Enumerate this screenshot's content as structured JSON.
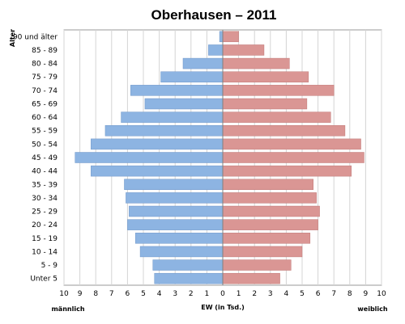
{
  "chart_data": {
    "type": "bar",
    "orientation": "horizontal",
    "layout": "population-pyramid",
    "title": "Oberhausen – 2011",
    "ylabel": "Alter",
    "xlabel": "EW (in Tsd.)",
    "left_label": "männlich",
    "right_label": "weiblich",
    "xlim": [
      -10,
      10
    ],
    "x_ticks": [
      "10",
      "9",
      "8",
      "7",
      "6",
      "5",
      "4",
      "3",
      "2",
      "1",
      "0",
      "1",
      "2",
      "3",
      "4",
      "5",
      "6",
      "7",
      "8",
      "9",
      "10"
    ],
    "categories": [
      "90 und älter",
      "85 - 89",
      "80 - 84",
      "75 - 79",
      "70 - 74",
      "65 - 69",
      "60 - 64",
      "55 - 59",
      "50 - 54",
      "45 - 49",
      "40 - 44",
      "35 - 39",
      "30 - 34",
      "25 - 29",
      "20 - 24",
      "15 - 19",
      "10 - 14",
      "5 - 9",
      "Unter 5"
    ],
    "series": [
      {
        "name": "männlich",
        "color": "#8db4e2",
        "values": [
          0.2,
          0.9,
          2.5,
          3.9,
          5.8,
          4.9,
          6.4,
          7.4,
          8.3,
          9.3,
          8.3,
          6.2,
          6.1,
          5.9,
          6.0,
          5.5,
          5.2,
          4.4,
          4.3
        ]
      },
      {
        "name": "weiblich",
        "color": "#da9694",
        "values": [
          1.0,
          2.6,
          4.2,
          5.4,
          7.0,
          5.3,
          6.8,
          7.7,
          8.7,
          8.9,
          8.1,
          5.7,
          5.9,
          6.1,
          6.0,
          5.5,
          5.0,
          4.3,
          3.6
        ]
      }
    ],
    "grid": true,
    "legend": "none"
  }
}
